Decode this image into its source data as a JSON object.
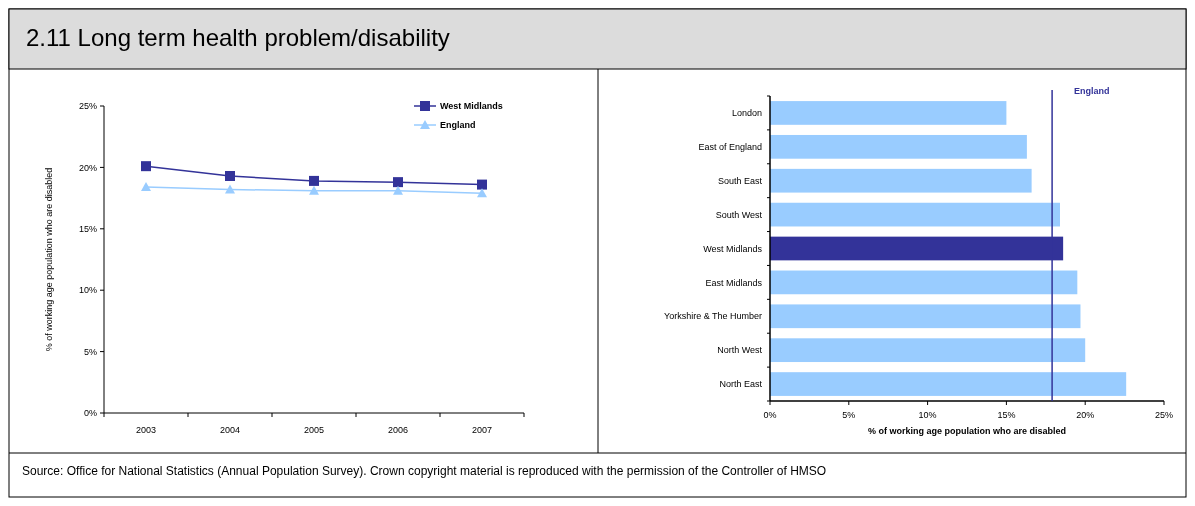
{
  "chart_data": [
    {
      "type": "line",
      "title": "2.11 Long term health problem/disability",
      "ylabel": "% of working age population who are disabled",
      "categories": [
        "2003",
        "2004",
        "2005",
        "2006",
        "2007"
      ],
      "series": [
        {
          "name": "West Midlands",
          "color": "#333399",
          "marker": "square",
          "values": [
            20.1,
            19.3,
            18.9,
            18.8,
            18.6
          ]
        },
        {
          "name": "England",
          "color": "#99ccff",
          "marker": "triangle",
          "values": [
            18.4,
            18.2,
            18.1,
            18.1,
            17.9
          ]
        }
      ],
      "ylim": [
        0,
        25
      ],
      "yticks": [
        {
          "value": 0,
          "label": "0%"
        },
        {
          "value": 5,
          "label": "5%"
        },
        {
          "value": 10,
          "label": "10%"
        },
        {
          "value": 15,
          "label": "15%"
        },
        {
          "value": 20,
          "label": "20%"
        },
        {
          "value": 25,
          "label": "25%"
        }
      ],
      "legend": "top right"
    },
    {
      "type": "bar",
      "orientation": "horizontal",
      "xlabel": "% of working age population who are disabled",
      "categories": [
        "London",
        "East of England",
        "South East",
        "South West",
        "West Midlands",
        "East Midlands",
        "Yorkshire & The Humber",
        "North West",
        "North East"
      ],
      "values": [
        15.0,
        16.3,
        16.6,
        18.4,
        18.6,
        19.5,
        19.7,
        20.0,
        22.6
      ],
      "colors": [
        "#99ccff",
        "#99ccff",
        "#99ccff",
        "#99ccff",
        "#333399",
        "#99ccff",
        "#99ccff",
        "#99ccff",
        "#99ccff"
      ],
      "xlim": [
        0,
        25
      ],
      "xticks": [
        {
          "value": 0,
          "label": "0%"
        },
        {
          "value": 5,
          "label": "5%"
        },
        {
          "value": 10,
          "label": "10%"
        },
        {
          "value": 15,
          "label": "15%"
        },
        {
          "value": 20,
          "label": "20%"
        },
        {
          "value": 25,
          "label": "25%"
        }
      ],
      "ref_lines": [
        {
          "axis": "x",
          "value": 17.9,
          "label": "England",
          "color": "#333399"
        }
      ],
      "annotations": [
        "Source: Office for National Statistics (Annual Population Survey). Crown copyright material is reproduced with the permission of the Controller of HMSO"
      ]
    }
  ]
}
